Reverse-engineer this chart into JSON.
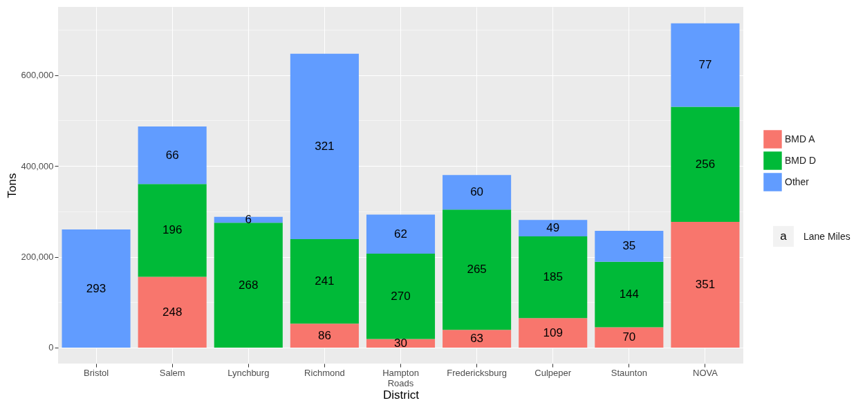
{
  "chart_data": {
    "type": "bar",
    "stacked": true,
    "xlabel": "District",
    "ylabel": "Tons",
    "categories": [
      "Bristol",
      "Salem",
      "Lynchburg",
      "Richmond",
      "Hampton Roads",
      "Fredericksburg",
      "Culpeper",
      "Staunton",
      "NOVA"
    ],
    "series": [
      {
        "name": "BMD A",
        "color": "#f8766d",
        "values": [
          null,
          156000,
          null,
          53000,
          19000,
          39000,
          65000,
          45000,
          277000
        ]
      },
      {
        "name": "BMD D",
        "color": "#00ba38",
        "values": [
          null,
          204000,
          275000,
          186000,
          188000,
          265000,
          180000,
          144000,
          253000
        ]
      },
      {
        "name": "Other",
        "color": "#619cff",
        "values": [
          260000,
          127000,
          13000,
          408000,
          86000,
          76000,
          36000,
          68000,
          184000
        ]
      }
    ],
    "ylim": [
      -35000,
      750000
    ],
    "yticks": [
      {
        "value": 0,
        "label": "0"
      },
      {
        "value": 100000,
        "label": null
      },
      {
        "value": 200000,
        "label": "200,000"
      },
      {
        "value": 300000,
        "label": null
      },
      {
        "value": 400000,
        "label": "400,000"
      },
      {
        "value": 500000,
        "label": null
      },
      {
        "value": 600000,
        "label": "600,000"
      },
      {
        "value": 700000,
        "label": null
      }
    ],
    "grid": true,
    "legend": "right",
    "annotations": [
      "a",
      "Lane Miles",
      "248",
      "86",
      "30",
      "63",
      "109",
      "70",
      "351",
      "196",
      "268",
      "241",
      "270",
      "265",
      "185",
      "144",
      "256",
      "293",
      "66",
      "6",
      "321",
      "62",
      "60",
      "49",
      "35",
      "77"
    ]
  }
}
